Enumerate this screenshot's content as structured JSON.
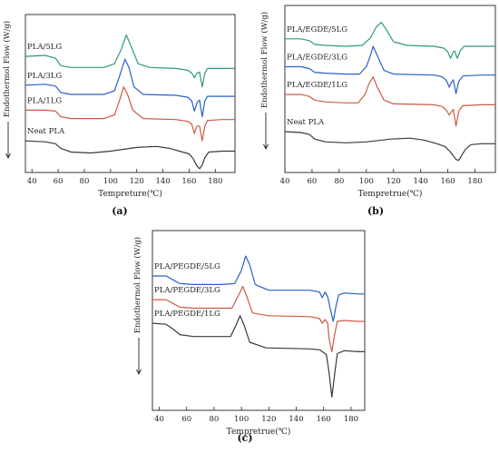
{
  "chart_data": [
    {
      "type": "line",
      "panel_label": "(a)",
      "xlabel": "Tempreture(℃)",
      "ylabel": "Endothermol Flow (W/g)",
      "xlim": [
        35,
        195
      ],
      "xticks": [
        40,
        60,
        80,
        100,
        120,
        140,
        160,
        180
      ],
      "xtick_labels": [
        "40",
        "60",
        "80",
        "100",
        "120",
        "140",
        "160",
        "180"
      ],
      "yticks": false,
      "grid": false,
      "series": [
        {
          "name": "PLA/5LG",
          "color": "#2e9c70",
          "points": [
            [
              35,
              45
            ],
            [
              50,
              44
            ],
            [
              58,
              47
            ],
            [
              62,
              55
            ],
            [
              70,
              57
            ],
            [
              85,
              57
            ],
            [
              95,
              57
            ],
            [
              103,
              53
            ],
            [
              108,
              38
            ],
            [
              112,
              22
            ],
            [
              116,
              35
            ],
            [
              121,
              53
            ],
            [
              130,
              57
            ],
            [
              150,
              58
            ],
            [
              159,
              60
            ],
            [
              162,
              63
            ],
            [
              164,
              68
            ],
            [
              166,
              63
            ],
            [
              168,
              62
            ],
            [
              170,
              78
            ],
            [
              172,
              63
            ],
            [
              174,
              58
            ],
            [
              185,
              58
            ],
            [
              195,
              58
            ]
          ]
        },
        {
          "name": "PLA/3LG",
          "color": "#2a5fc9",
          "points": [
            [
              35,
              76
            ],
            [
              50,
              75
            ],
            [
              58,
              77
            ],
            [
              62,
              84
            ],
            [
              70,
              86
            ],
            [
              85,
              86
            ],
            [
              95,
              86
            ],
            [
              103,
              82
            ],
            [
              107,
              66
            ],
            [
              111,
              48
            ],
            [
              114,
              57
            ],
            [
              118,
              78
            ],
            [
              125,
              86
            ],
            [
              150,
              87
            ],
            [
              159,
              89
            ],
            [
              162,
              93
            ],
            [
              164,
              104
            ],
            [
              166,
              95
            ],
            [
              168,
              92
            ],
            [
              170,
              110
            ],
            [
              172,
              93
            ],
            [
              174,
              88
            ],
            [
              185,
              88
            ],
            [
              195,
              88
            ]
          ]
        },
        {
          "name": "PLA/1LG",
          "color": "#cc5a45",
          "points": [
            [
              35,
              103
            ],
            [
              50,
              103
            ],
            [
              58,
              104
            ],
            [
              62,
              110
            ],
            [
              70,
              112
            ],
            [
              85,
              112
            ],
            [
              95,
              112
            ],
            [
              103,
              108
            ],
            [
              107,
              92
            ],
            [
              110,
              78
            ],
            [
              113,
              86
            ],
            [
              117,
              103
            ],
            [
              125,
              112
            ],
            [
              150,
              113
            ],
            [
              159,
              115
            ],
            [
              162,
              118
            ],
            [
              164,
              128
            ],
            [
              166,
              120
            ],
            [
              168,
              120
            ],
            [
              170,
              136
            ],
            [
              172,
              120
            ],
            [
              174,
              114
            ],
            [
              185,
              113
            ],
            [
              195,
              113
            ]
          ]
        },
        {
          "name": "Neat PLA",
          "color": "#3a3a3a",
          "points": [
            [
              35,
              136
            ],
            [
              50,
              137
            ],
            [
              58,
              139
            ],
            [
              62,
              144
            ],
            [
              70,
              148
            ],
            [
              85,
              149
            ],
            [
              100,
              147
            ],
            [
              120,
              143
            ],
            [
              135,
              142
            ],
            [
              145,
              144
            ],
            [
              155,
              148
            ],
            [
              160,
              150
            ],
            [
              163,
              155
            ],
            [
              166,
              163
            ],
            [
              168,
              166
            ],
            [
              170,
              162
            ],
            [
              172,
              154
            ],
            [
              175,
              148
            ],
            [
              185,
              147
            ],
            [
              195,
              147
            ]
          ]
        }
      ]
    },
    {
      "type": "line",
      "panel_label": "(b)",
      "xlabel": "Tempretrue(℃)",
      "ylabel": "Endothermol Flow (W/g)",
      "xlim": [
        40,
        195
      ],
      "xticks": [
        40,
        60,
        80,
        100,
        120,
        140,
        160,
        180
      ],
      "xtick_labels": [
        "40",
        "60",
        "80",
        "100",
        "120",
        "140",
        "160",
        "180"
      ],
      "yticks": false,
      "grid": false,
      "series": [
        {
          "name": "PLA/EGDE/5LG",
          "color": "#2e9c70",
          "points": [
            [
              40,
              36
            ],
            [
              52,
              36
            ],
            [
              58,
              38
            ],
            [
              62,
              42
            ],
            [
              70,
              43
            ],
            [
              85,
              44
            ],
            [
              97,
              43
            ],
            [
              103,
              35
            ],
            [
              107,
              24
            ],
            [
              111,
              18
            ],
            [
              115,
              27
            ],
            [
              120,
              39
            ],
            [
              130,
              43
            ],
            [
              150,
              44
            ],
            [
              157,
              46
            ],
            [
              160,
              50
            ],
            [
              162,
              57
            ],
            [
              164,
              50
            ],
            [
              165,
              49
            ],
            [
              167,
              57
            ],
            [
              169,
              49
            ],
            [
              172,
              44
            ],
            [
              185,
              44
            ],
            [
              195,
              44
            ]
          ]
        },
        {
          "name": "PLA/EGDE/3LG",
          "color": "#2a5fc9",
          "points": [
            [
              40,
              66
            ],
            [
              52,
              66
            ],
            [
              58,
              68
            ],
            [
              62,
              72
            ],
            [
              70,
              73
            ],
            [
              85,
              74
            ],
            [
              95,
              74
            ],
            [
              100,
              66
            ],
            [
              103,
              54
            ],
            [
              105,
              44
            ],
            [
              108,
              54
            ],
            [
              113,
              70
            ],
            [
              120,
              74
            ],
            [
              150,
              75
            ],
            [
              156,
              77
            ],
            [
              159,
              81
            ],
            [
              161,
              88
            ],
            [
              163,
              82
            ],
            [
              164,
              80
            ],
            [
              166,
              95
            ],
            [
              168,
              82
            ],
            [
              171,
              76
            ],
            [
              185,
              75
            ],
            [
              195,
              75
            ]
          ]
        },
        {
          "name": "PLA/EGDE/1LG",
          "color": "#cc5a45",
          "points": [
            [
              40,
              96
            ],
            [
              52,
              96
            ],
            [
              58,
              98
            ],
            [
              62,
              102
            ],
            [
              70,
              104
            ],
            [
              85,
              105
            ],
            [
              94,
              105
            ],
            [
              99,
              96
            ],
            [
              102,
              84
            ],
            [
              105,
              77
            ],
            [
              108,
              88
            ],
            [
              113,
              102
            ],
            [
              120,
              106
            ],
            [
              150,
              107
            ],
            [
              156,
              109
            ],
            [
              159,
              113
            ],
            [
              161,
              118
            ],
            [
              163,
              114
            ],
            [
              164,
              112
            ],
            [
              166,
              130
            ],
            [
              168,
              114
            ],
            [
              171,
              108
            ],
            [
              185,
              107
            ],
            [
              195,
              107
            ]
          ]
        },
        {
          "name": "Neat PLA",
          "color": "#3a3a3a",
          "points": [
            [
              40,
              136
            ],
            [
              52,
              137
            ],
            [
              58,
              139
            ],
            [
              62,
              144
            ],
            [
              70,
              147
            ],
            [
              85,
              148
            ],
            [
              100,
              147
            ],
            [
              118,
              144
            ],
            [
              132,
              143
            ],
            [
              142,
              145
            ],
            [
              152,
              149
            ],
            [
              158,
              152
            ],
            [
              162,
              158
            ],
            [
              166,
              166
            ],
            [
              168,
              167
            ],
            [
              170,
              162
            ],
            [
              173,
              155
            ],
            [
              177,
              150
            ],
            [
              185,
              149
            ],
            [
              195,
              149
            ]
          ]
        }
      ]
    },
    {
      "type": "line",
      "panel_label": "(c)",
      "xlabel": "Tempretrue(℃)",
      "ylabel": "Endothermol Flow (W/g)",
      "xlim": [
        35,
        190
      ],
      "xticks": [
        40,
        60,
        80,
        100,
        120,
        140,
        160,
        180
      ],
      "xtick_labels": [
        "40",
        "60",
        "80",
        "100",
        "120",
        "140",
        "160",
        "180"
      ],
      "yticks": false,
      "grid": false,
      "series": [
        {
          "name": "PLA/PEGDE/5LG",
          "color": "#2a5fc9",
          "points": [
            [
              35,
              48
            ],
            [
              45,
              48
            ],
            [
              50,
              52
            ],
            [
              55,
              56
            ],
            [
              65,
              57
            ],
            [
              85,
              57
            ],
            [
              95,
              56
            ],
            [
              100,
              42
            ],
            [
              103,
              27
            ],
            [
              106,
              36
            ],
            [
              110,
              57
            ],
            [
              120,
              63
            ],
            [
              150,
              63
            ],
            [
              157,
              65
            ],
            [
              159,
              71
            ],
            [
              161,
              65
            ],
            [
              163,
              70
            ],
            [
              165,
              84
            ],
            [
              167,
              96
            ],
            [
              169,
              80
            ],
            [
              171,
              68
            ],
            [
              175,
              66
            ],
            [
              185,
              67
            ],
            [
              190,
              67
            ]
          ]
        },
        {
          "name": "PLA/PEGDE/3LG",
          "color": "#cc5a45",
          "points": [
            [
              35,
              73
            ],
            [
              45,
              73
            ],
            [
              50,
              77
            ],
            [
              55,
              81
            ],
            [
              65,
              82
            ],
            [
              85,
              82
            ],
            [
              93,
              82
            ],
            [
              98,
              68
            ],
            [
              101,
              59
            ],
            [
              104,
              70
            ],
            [
              108,
              87
            ],
            [
              120,
              90
            ],
            [
              150,
              91
            ],
            [
              157,
              93
            ],
            [
              159,
              98
            ],
            [
              161,
              94
            ],
            [
              163,
              98
            ],
            [
              164,
              114
            ],
            [
              166,
              128
            ],
            [
              168,
              110
            ],
            [
              170,
              96
            ],
            [
              175,
              95
            ],
            [
              185,
              96
            ],
            [
              190,
              96
            ]
          ]
        },
        {
          "name": "PLA/PEGDE/1LG",
          "color": "#3a3a3a",
          "points": [
            [
              35,
              98
            ],
            [
              45,
              99
            ],
            [
              50,
              104
            ],
            [
              55,
              110
            ],
            [
              65,
              112
            ],
            [
              85,
              112
            ],
            [
              92,
              112
            ],
            [
              96,
              100
            ],
            [
              99,
              90
            ],
            [
              102,
              100
            ],
            [
              106,
              118
            ],
            [
              118,
              124
            ],
            [
              150,
              125
            ],
            [
              157,
              126
            ],
            [
              160,
              129
            ],
            [
              162,
              131
            ],
            [
              164,
              150
            ],
            [
              166,
              176
            ],
            [
              168,
              152
            ],
            [
              170,
              130
            ],
            [
              175,
              127
            ],
            [
              185,
              128
            ],
            [
              190,
              128
            ]
          ]
        }
      ]
    }
  ]
}
